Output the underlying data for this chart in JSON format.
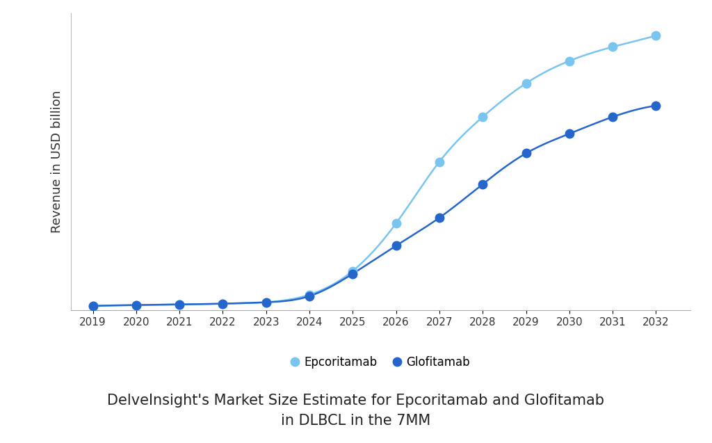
{
  "years": [
    2019,
    2020,
    2021,
    2022,
    2023,
    2024,
    2025,
    2026,
    2027,
    2028,
    2029,
    2030,
    2031,
    2032
  ],
  "epcoritamab": [
    0.005,
    0.008,
    0.01,
    0.013,
    0.018,
    0.045,
    0.13,
    0.3,
    0.52,
    0.68,
    0.8,
    0.88,
    0.93,
    0.97
  ],
  "glofitamab": [
    0.005,
    0.008,
    0.01,
    0.013,
    0.018,
    0.04,
    0.12,
    0.22,
    0.32,
    0.44,
    0.55,
    0.62,
    0.68,
    0.72
  ],
  "epco_color": "#7ac4f0",
  "glofi_color": "#2566cc",
  "epco_label": "Epcoritamab",
  "glofi_label": "Glofitamab",
  "ylabel": "Revenue in USD billion",
  "title_line1": "DelveInsight's Market Size Estimate for Epcoritamab and Glofitamab",
  "title_line2": "in DLBCL in the 7MM",
  "background_color": "#ffffff",
  "ylabel_fontsize": 13,
  "title_fontsize": 15,
  "legend_fontsize": 12,
  "tick_fontsize": 11,
  "marker_size": 9,
  "line_width": 1.8
}
